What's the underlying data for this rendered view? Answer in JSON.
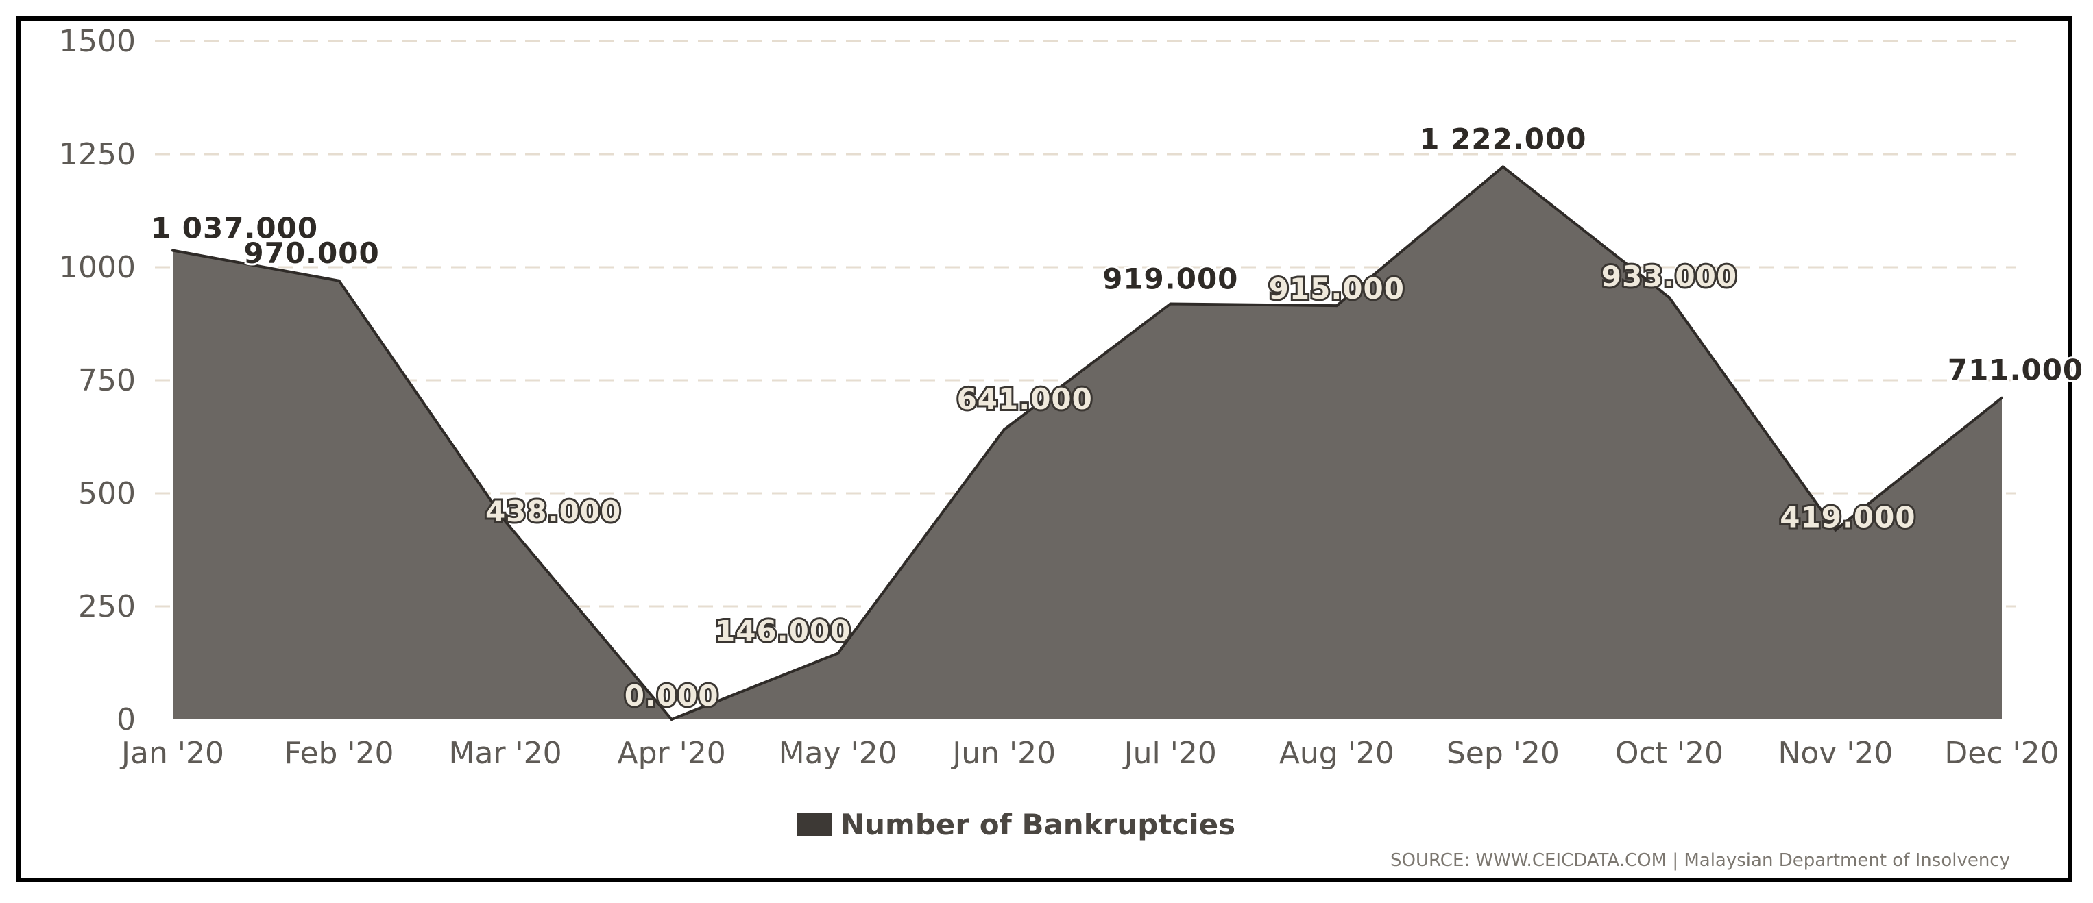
{
  "chart_data": {
    "type": "area",
    "categories": [
      "Jan '20",
      "Feb '20",
      "Mar '20",
      "Apr '20",
      "May '20",
      "Jun '20",
      "Jul '20",
      "Aug '20",
      "Sep '20",
      "Oct '20",
      "Nov '20",
      "Dec '20"
    ],
    "series": [
      {
        "name": "Number of Bankruptcies",
        "values": [
          1037,
          970,
          438,
          0,
          146,
          641,
          919,
          915,
          1222,
          933,
          419,
          711
        ],
        "labels": [
          "1 037.000",
          "970.000",
          "438.000",
          "0.000",
          "146.000",
          "641.000",
          "919.000",
          "915.000",
          "1 222.000",
          "933.000",
          "419.000",
          "711.000"
        ]
      }
    ],
    "ylim": [
      0,
      1500
    ],
    "yticks": [
      "0",
      "250",
      "500",
      "750",
      "1000",
      "1250",
      "1500"
    ],
    "ytick_values": [
      0,
      250,
      500,
      750,
      1000,
      1250,
      1500
    ],
    "grid": true,
    "legend_placement": "bottom-center",
    "source": "SOURCE: WWW.CEICDATA.COM | Malaysian Department of Insolvency",
    "colors": {
      "area_fill": "#6b6763",
      "area_stroke": "#2f2b28",
      "grid": "#e6ddd0",
      "legend_swatch": "#3d3935",
      "label_dark": "#2e2a26",
      "label_light": "#efe9dc"
    }
  }
}
